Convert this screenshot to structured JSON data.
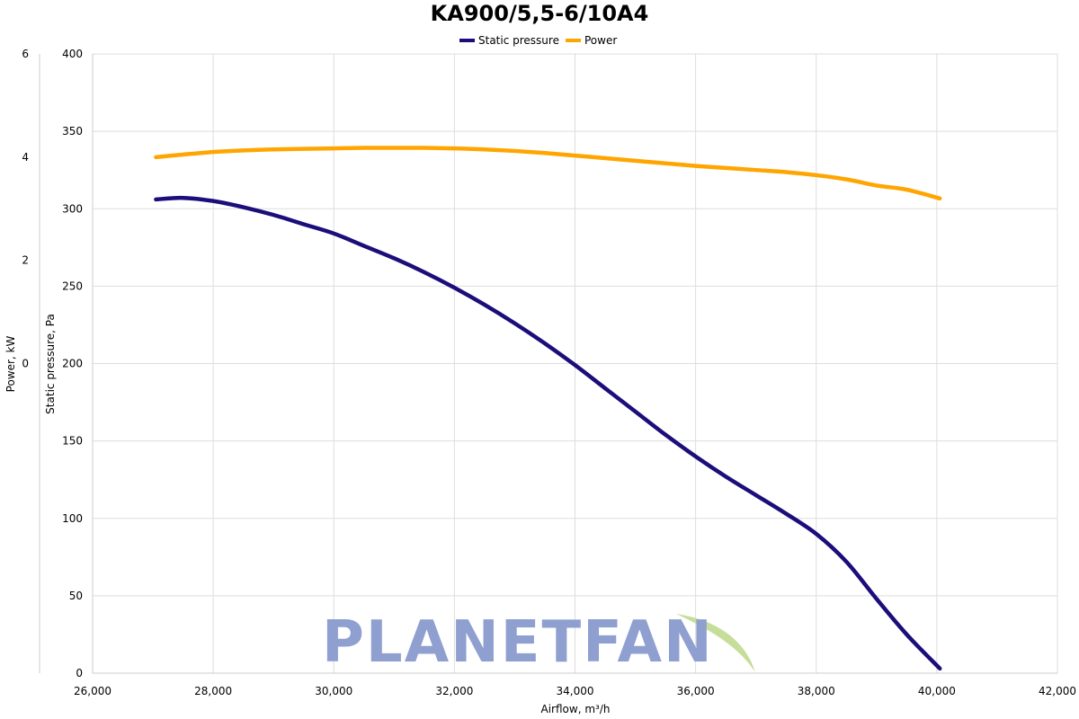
{
  "chart_data": {
    "type": "line",
    "title": "KA900/5,5-6/10A4",
    "xlabel": "Airflow, m³/h",
    "ylabel": "Static pressure, Pa",
    "y2label": "Power, kW",
    "xlim": [
      26000,
      42000
    ],
    "ylim": [
      0,
      400
    ],
    "y2lim": [
      -6,
      6
    ],
    "x_ticks": [
      26000,
      28000,
      30000,
      32000,
      34000,
      36000,
      38000,
      40000,
      42000
    ],
    "x_tick_labels": [
      "26,000",
      "28,000",
      "30,000",
      "32,000",
      "34,000",
      "36,000",
      "38,000",
      "40,000",
      "42,000"
    ],
    "y_ticks": [
      0,
      50,
      100,
      150,
      200,
      250,
      300,
      350,
      400
    ],
    "y_tick_labels": [
      "0",
      "50",
      "100",
      "150",
      "200",
      "250",
      "300",
      "350",
      "400"
    ],
    "y2_ticks": [
      0,
      2,
      4,
      6
    ],
    "y2_tick_labels": [
      "0",
      "2",
      "4",
      "6"
    ],
    "grid": true,
    "legend_position": "top-center",
    "series": [
      {
        "name": "Static pressure",
        "color": "#1b0d7a",
        "x": [
          27050,
          27500,
          28000,
          28500,
          29000,
          29500,
          30000,
          30500,
          31000,
          31500,
          32000,
          32500,
          33000,
          33500,
          34000,
          34500,
          35000,
          35500,
          36000,
          36500,
          37000,
          37500,
          38000,
          38500,
          39000,
          39500,
          40050
        ],
        "y": [
          306,
          307,
          305,
          301,
          296,
          290,
          284,
          276,
          268,
          259,
          249,
          238,
          226,
          213,
          199,
          184,
          169,
          154,
          140,
          127,
          115,
          103,
          90,
          72,
          48,
          25,
          3
        ]
      },
      {
        "name": "Power",
        "color": "#ffa500",
        "x": [
          27050,
          27500,
          28000,
          28500,
          29000,
          29500,
          30000,
          30500,
          31000,
          31500,
          32000,
          32500,
          33000,
          33500,
          34000,
          34500,
          35000,
          35500,
          36000,
          36500,
          37000,
          37500,
          38000,
          38500,
          39000,
          39500,
          40050
        ],
        "y": [
          4.0,
          4.05,
          4.1,
          4.13,
          4.15,
          4.16,
          4.17,
          4.18,
          4.18,
          4.18,
          4.17,
          4.15,
          4.12,
          4.08,
          4.03,
          3.98,
          3.93,
          3.88,
          3.83,
          3.79,
          3.75,
          3.71,
          3.65,
          3.57,
          3.45,
          3.37,
          3.2
        ]
      }
    ]
  },
  "watermark": {
    "text": "PLANETFAN"
  }
}
